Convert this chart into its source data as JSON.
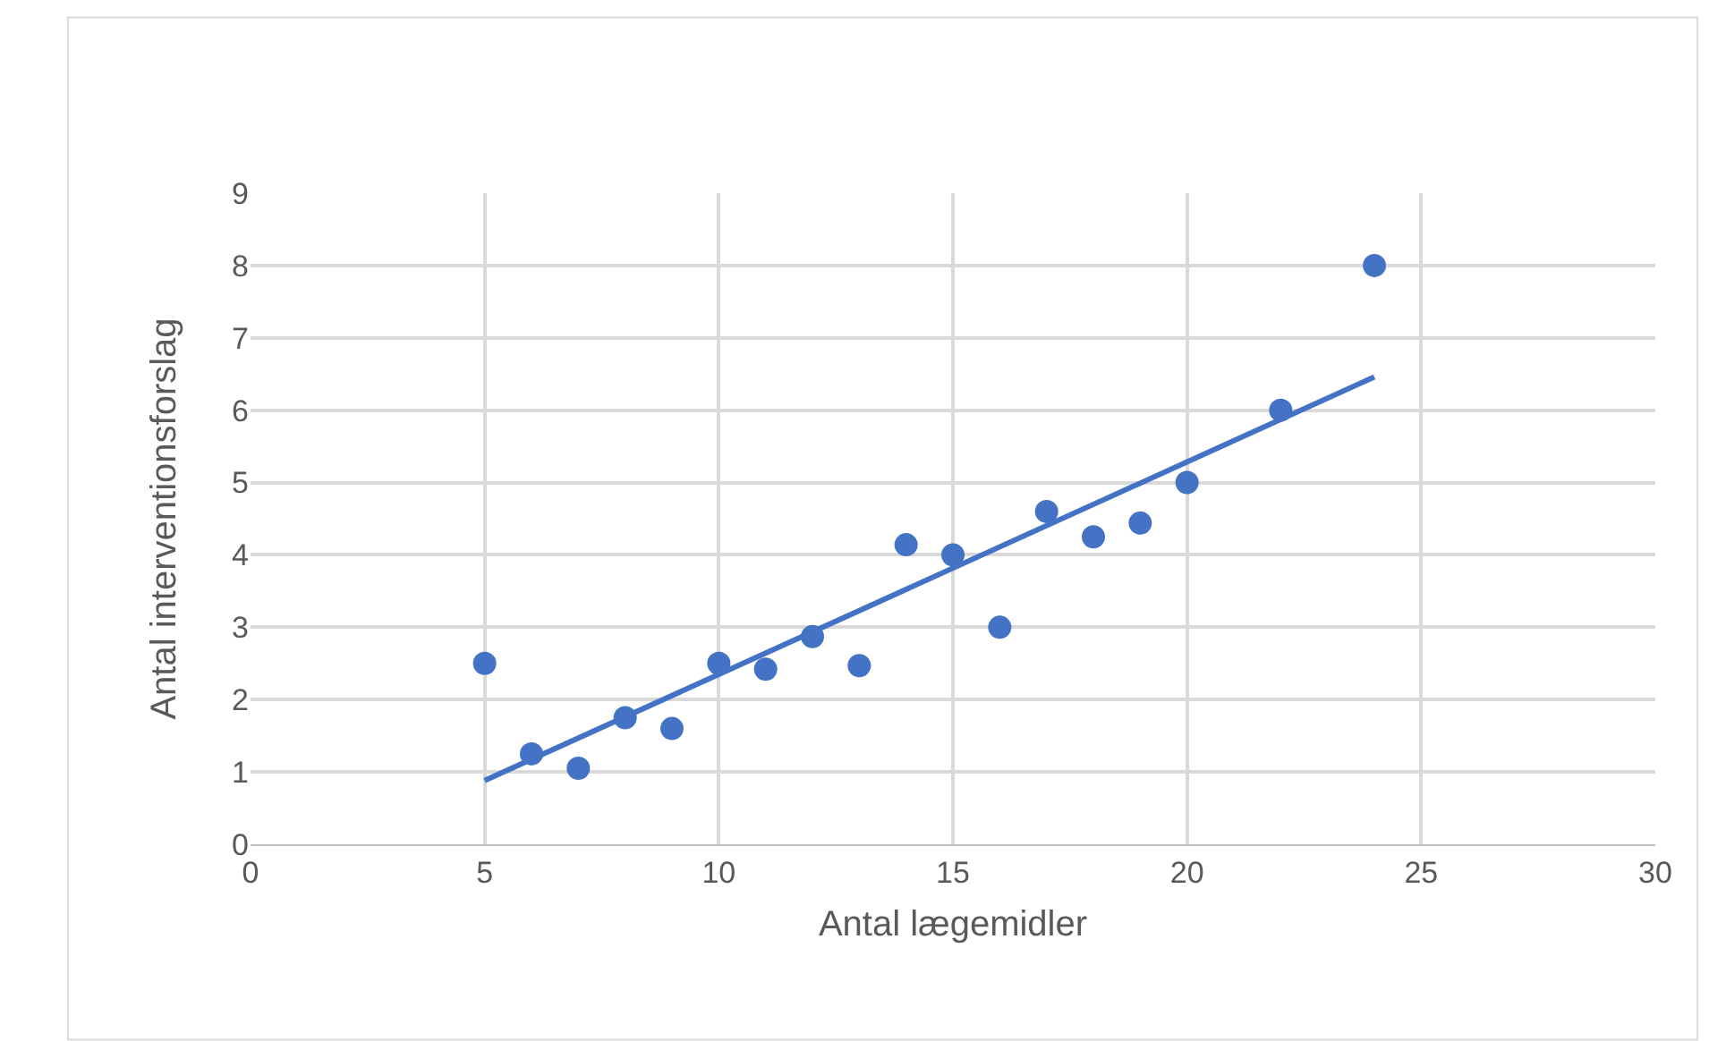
{
  "chart_data": {
    "type": "scatter",
    "xlabel": "Antal lægemidler",
    "ylabel": "Antal interventionsforslag",
    "x": [
      5,
      6,
      7,
      8,
      9,
      10,
      11,
      12,
      13,
      14,
      15,
      16,
      17,
      18,
      19,
      20,
      22,
      24
    ],
    "series": [
      {
        "color": "#4472c4",
        "marker": "circle",
        "values": [
          2.5,
          1.25,
          1.05,
          1.75,
          1.6,
          2.5,
          2.42,
          2.87,
          2.47,
          4.14,
          4.0,
          3.0,
          4.6,
          4.25,
          4.44,
          5.0,
          6.0,
          8.0
        ]
      },
      {
        "type": "line",
        "color": "#4472c4",
        "x": [
          5,
          24
        ],
        "values": [
          0.88,
          6.46
        ]
      }
    ],
    "xlim": [
      0,
      30
    ],
    "xticks": [
      0,
      5,
      10,
      15,
      20,
      25,
      30
    ],
    "ylim": [
      0,
      9
    ],
    "yticks": [
      0,
      1,
      2,
      3,
      4,
      5,
      6,
      7,
      8,
      9
    ],
    "grid": true,
    "legend": false
  }
}
